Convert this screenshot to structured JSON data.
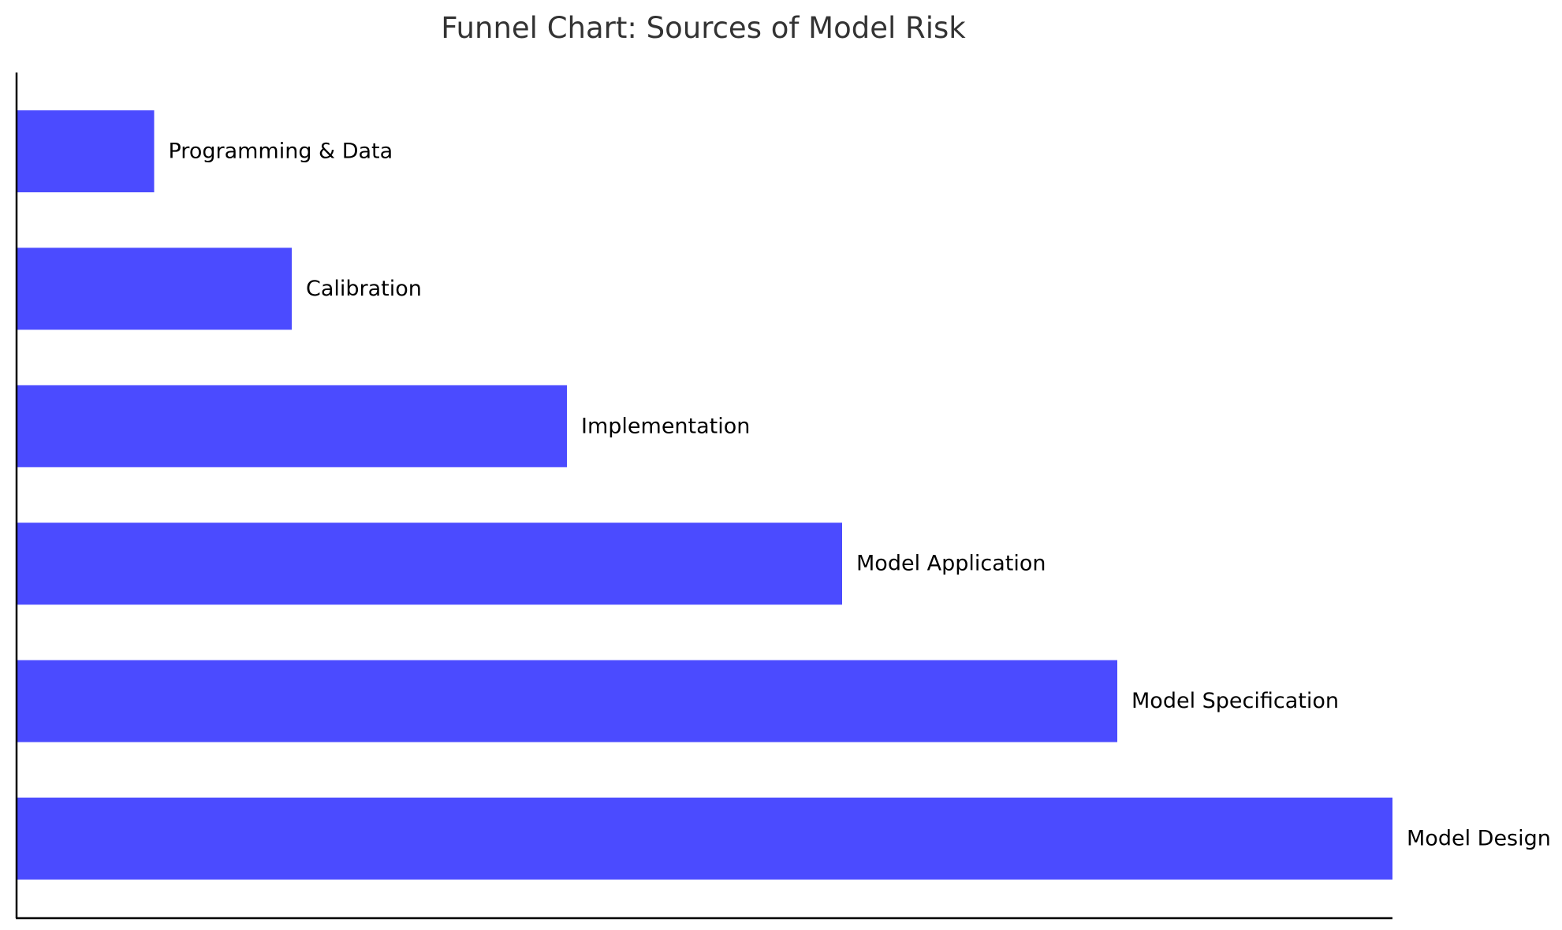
{
  "chart_data": {
    "type": "bar",
    "orientation": "horizontal",
    "title": "Funnel Chart: Sources of Model Risk",
    "xlabel": "",
    "ylabel": "",
    "categories": [
      "Model Design",
      "Model Specification",
      "Model Application",
      "Implementation",
      "Calibration",
      "Programming & Data"
    ],
    "values": [
      100,
      80,
      60,
      40,
      20,
      10
    ],
    "xlim": [
      0,
      100
    ],
    "bar_color": "#4b4bff",
    "grid": false,
    "legend": "none",
    "tick_labels_visible": false,
    "data_labels": "category name at bar end"
  }
}
